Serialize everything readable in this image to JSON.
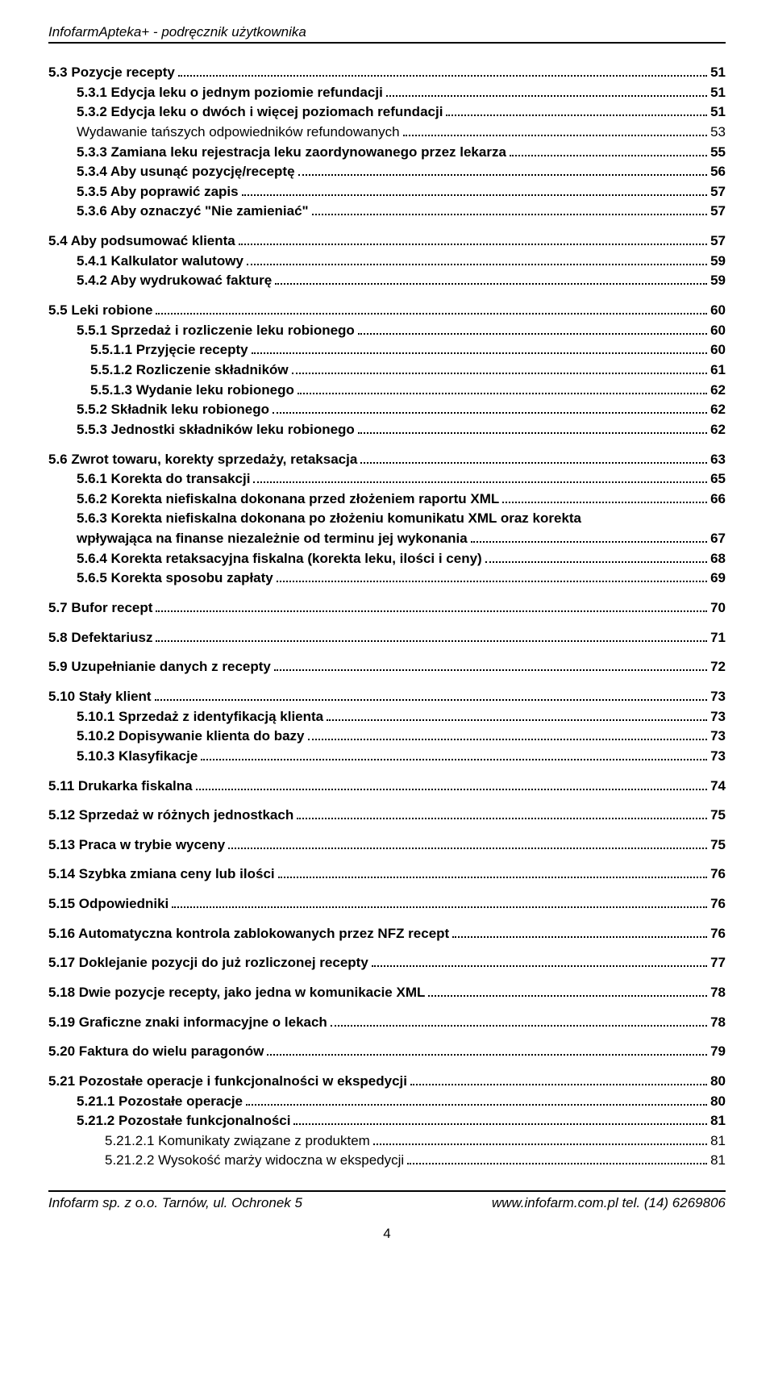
{
  "header": "InfofarmApteka+ - podręcznik użytkownika",
  "footer_left": "Infofarm sp. z o.o. Tarnów, ul. Ochronek 5",
  "footer_right": "www.infofarm.com.pl  tel. (14) 6269806",
  "page_number": "4",
  "toc": [
    {
      "indent": 0,
      "bold": true,
      "gap": false,
      "label": "5.3    Pozycje recepty",
      "page": "51"
    },
    {
      "indent": 1,
      "bold": true,
      "gap": false,
      "label": "5.3.1    Edycja leku o jednym poziomie refundacji",
      "page": "51"
    },
    {
      "indent": 1,
      "bold": true,
      "gap": false,
      "label": "5.3.2    Edycja leku o dwóch i więcej poziomach refundacji",
      "page": "51"
    },
    {
      "indent": 1,
      "bold": false,
      "gap": false,
      "label": "Wydawanie tańszych odpowiedników refundowanych",
      "page": "53"
    },
    {
      "indent": 1,
      "bold": true,
      "gap": false,
      "label": "5.3.3    Zamiana leku rejestracja leku zaordynowanego przez lekarza",
      "page": "55"
    },
    {
      "indent": 1,
      "bold": true,
      "gap": false,
      "label": "5.3.4    Aby usunąć pozycję/receptę",
      "page": "56"
    },
    {
      "indent": 1,
      "bold": true,
      "gap": false,
      "label": "5.3.5    Aby poprawić zapis",
      "page": "57"
    },
    {
      "indent": 1,
      "bold": true,
      "gap": false,
      "label": "5.3.6    Aby oznaczyć \"Nie zamieniać\"",
      "page": "57"
    },
    {
      "indent": 0,
      "bold": true,
      "gap": true,
      "label": "5.4    Aby podsumować klienta",
      "page": "57"
    },
    {
      "indent": 1,
      "bold": true,
      "gap": false,
      "label": "5.4.1    Kalkulator walutowy",
      "page": "59"
    },
    {
      "indent": 1,
      "bold": true,
      "gap": false,
      "label": "5.4.2    Aby wydrukować fakturę",
      "page": "59"
    },
    {
      "indent": 0,
      "bold": true,
      "gap": true,
      "label": "5.5    Leki robione",
      "page": "60"
    },
    {
      "indent": 1,
      "bold": true,
      "gap": false,
      "label": "5.5.1    Sprzedaż i rozliczenie leku robionego",
      "page": "60"
    },
    {
      "indent": 2,
      "bold": true,
      "gap": false,
      "label": "5.5.1.1    Przyjęcie recepty",
      "page": "60"
    },
    {
      "indent": 2,
      "bold": true,
      "gap": false,
      "label": "5.5.1.2    Rozliczenie składników",
      "page": "61"
    },
    {
      "indent": 2,
      "bold": true,
      "gap": false,
      "label": "5.5.1.3    Wydanie leku robionego",
      "page": "62"
    },
    {
      "indent": 1,
      "bold": true,
      "gap": false,
      "label": "5.5.2    Składnik leku robionego",
      "page": "62"
    },
    {
      "indent": 1,
      "bold": true,
      "gap": false,
      "label": "5.5.3    Jednostki składników leku robionego",
      "page": "62"
    },
    {
      "indent": 0,
      "bold": true,
      "gap": true,
      "label": "5.6    Zwrot towaru, korekty sprzedaży, retaksacja",
      "page": "63"
    },
    {
      "indent": 1,
      "bold": true,
      "gap": false,
      "label": "5.6.1    Korekta do transakcji",
      "page": "65"
    },
    {
      "indent": 1,
      "bold": true,
      "gap": false,
      "label": "5.6.2    Korekta niefiskalna dokonana przed złożeniem raportu XML",
      "page": "66"
    },
    {
      "indent": 1,
      "bold": true,
      "gap": false,
      "label": "5.6.3    Korekta niefiskalna dokonana po złożeniu komunikatu XML oraz korekta",
      "page": null
    },
    {
      "indent": 1,
      "bold": true,
      "gap": false,
      "label": "wpływająca na finanse niezależnie od terminu jej wykonania",
      "page": "67"
    },
    {
      "indent": 1,
      "bold": true,
      "gap": false,
      "label": "5.6.4    Korekta retaksacyjna fiskalna (korekta leku, ilości i ceny)",
      "page": "68"
    },
    {
      "indent": 1,
      "bold": true,
      "gap": false,
      "label": "5.6.5    Korekta sposobu zapłaty",
      "page": "69"
    },
    {
      "indent": 0,
      "bold": true,
      "gap": true,
      "label": "5.7    Bufor recept",
      "page": "70"
    },
    {
      "indent": 0,
      "bold": true,
      "gap": true,
      "label": "5.8    Defektariusz",
      "page": "71"
    },
    {
      "indent": 0,
      "bold": true,
      "gap": true,
      "label": "5.9    Uzupełnianie danych z recepty",
      "page": "72"
    },
    {
      "indent": 0,
      "bold": true,
      "gap": true,
      "label": "5.10  Stały klient",
      "page": "73"
    },
    {
      "indent": 1,
      "bold": true,
      "gap": false,
      "label": "5.10.1     Sprzedaż z identyfikacją klienta",
      "page": "73"
    },
    {
      "indent": 1,
      "bold": true,
      "gap": false,
      "label": "5.10.2     Dopisywanie klienta do bazy",
      "page": "73"
    },
    {
      "indent": 1,
      "bold": true,
      "gap": false,
      "label": "5.10.3     Klasyfikacje",
      "page": "73"
    },
    {
      "indent": 0,
      "bold": true,
      "gap": true,
      "label": "5.11  Drukarka fiskalna",
      "page": "74"
    },
    {
      "indent": 0,
      "bold": true,
      "gap": true,
      "label": "5.12  Sprzedaż w różnych jednostkach",
      "page": "75"
    },
    {
      "indent": 0,
      "bold": true,
      "gap": true,
      "label": "5.13  Praca w trybie wyceny",
      "page": "75"
    },
    {
      "indent": 0,
      "bold": true,
      "gap": true,
      "label": "5.14  Szybka zmiana ceny lub ilości",
      "page": "76"
    },
    {
      "indent": 0,
      "bold": true,
      "gap": true,
      "label": "5.15  Odpowiedniki",
      "page": "76"
    },
    {
      "indent": 0,
      "bold": true,
      "gap": true,
      "label": "5.16  Automatyczna kontrola zablokowanych przez NFZ recept",
      "page": "76"
    },
    {
      "indent": 0,
      "bold": true,
      "gap": true,
      "label": "5.17  Doklejanie pozycji do już rozliczonej recepty",
      "page": "77"
    },
    {
      "indent": 0,
      "bold": true,
      "gap": true,
      "label": "5.18  Dwie pozycje recepty, jako jedna w komunikacie XML",
      "page": "78"
    },
    {
      "indent": 0,
      "bold": true,
      "gap": true,
      "label": "5.19  Graficzne znaki informacyjne o lekach",
      "page": "78"
    },
    {
      "indent": 0,
      "bold": true,
      "gap": true,
      "label": "5.20  Faktura do wielu paragonów",
      "page": "79"
    },
    {
      "indent": 0,
      "bold": true,
      "gap": true,
      "label": "5.21  Pozostałe operacje i funkcjonalności w ekspedycji",
      "page": "80"
    },
    {
      "indent": 1,
      "bold": true,
      "gap": false,
      "label": "5.21.1     Pozostałe operacje",
      "page": "80"
    },
    {
      "indent": 1,
      "bold": true,
      "gap": false,
      "label": "5.21.2     Pozostałe funkcjonalności",
      "page": "81"
    },
    {
      "indent": 3,
      "bold": false,
      "gap": false,
      "label": "5.21.2.1    Komunikaty związane z produktem",
      "page": "81"
    },
    {
      "indent": 3,
      "bold": false,
      "gap": false,
      "label": "5.21.2.2    Wysokość marży widoczna w ekspedycji",
      "page": "81"
    }
  ]
}
